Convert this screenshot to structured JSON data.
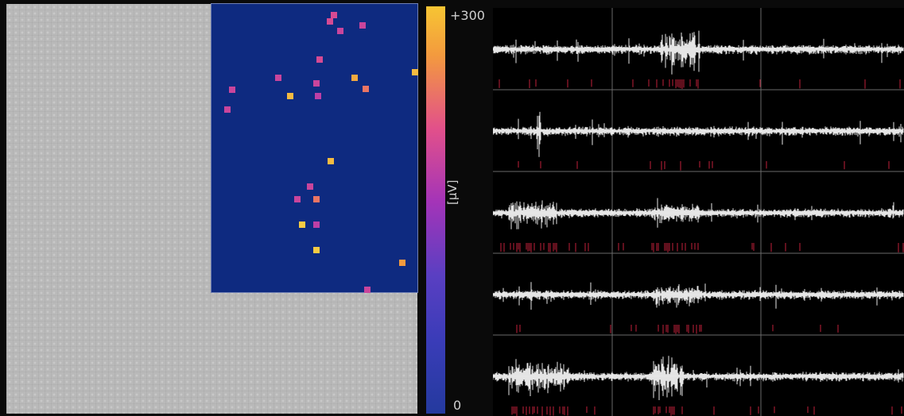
{
  "colorbar": {
    "max_label": "+300",
    "min_label": "0",
    "unit_label": "[µV]",
    "colors": {
      "top": "#f7c533",
      "upper_mid": "#e2508a",
      "mid": "#a434b8",
      "bottom": "#243a9e"
    }
  },
  "array": {
    "inactive_color": "#b9b9b9",
    "active_color": "#0e2a80",
    "active_pixel_levels": [
      {
        "name": "pix-1",
        "level": 0.55
      },
      {
        "name": "pix-2",
        "level": 0.55
      },
      {
        "name": "pix-3",
        "level": 0.5
      },
      {
        "name": "pix-4",
        "level": 0.5
      },
      {
        "name": "pix-5",
        "level": 0.55
      },
      {
        "name": "pix-6",
        "level": 0.5
      },
      {
        "name": "pix-7",
        "level": 0.9
      },
      {
        "name": "pix-8",
        "level": 0.5
      },
      {
        "name": "pix-9",
        "level": 0.5
      },
      {
        "name": "pix-10",
        "level": 0.5
      },
      {
        "name": "pix-11",
        "level": 0.85
      },
      {
        "name": "pix-12",
        "level": 0.7
      },
      {
        "name": "pix-13",
        "level": 0.9
      },
      {
        "name": "pix-14",
        "level": 0.45
      },
      {
        "name": "pix-15",
        "level": 0.9
      },
      {
        "name": "pix-16",
        "level": 0.5
      },
      {
        "name": "pix-17",
        "level": 0.5
      },
      {
        "name": "pix-18",
        "level": 0.7
      },
      {
        "name": "pix-19",
        "level": 0.95
      },
      {
        "name": "pix-20",
        "level": 0.45
      },
      {
        "name": "pix-21",
        "level": 0.95
      },
      {
        "name": "pix-22",
        "level": 0.8
      },
      {
        "name": "pix-23",
        "level": 0.5
      }
    ]
  },
  "traces": {
    "rows": 5,
    "columns": 3,
    "trace_color": "#ffffff",
    "spike_color": "#c0203a",
    "grid_color": "#6a6a6a"
  }
}
